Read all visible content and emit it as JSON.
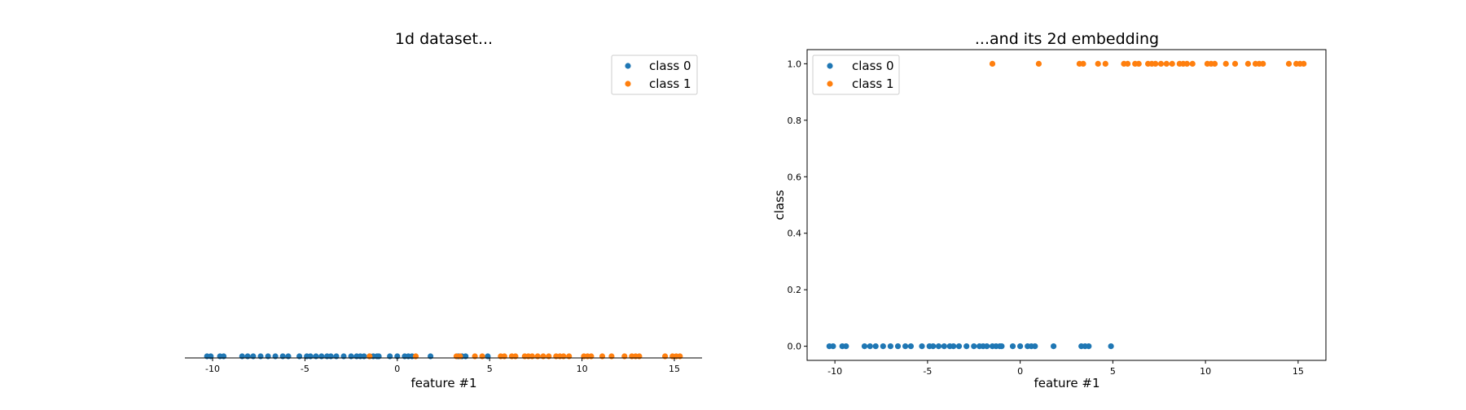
{
  "colors": {
    "class0": "#1f77b4",
    "class1": "#ff7f0e"
  },
  "legend": [
    "class 0",
    "class 1"
  ],
  "chart_data": [
    {
      "type": "scatter",
      "title": "1d dataset...",
      "xlabel": "feature #1",
      "ylabel": "",
      "xlim": [
        -11.5,
        16.5
      ],
      "xticks": [
        -10,
        -5,
        0,
        5,
        10,
        15
      ],
      "grid": false,
      "legend_position": "top-right",
      "series": [
        {
          "name": "class 0",
          "color": "#1f77b4",
          "x": [
            -10.3,
            -10.1,
            -9.6,
            -9.4,
            -8.4,
            -8.1,
            -7.8,
            -7.4,
            -7.0,
            -6.6,
            -6.2,
            -5.9,
            -5.3,
            -4.9,
            -4.7,
            -4.4,
            -4.1,
            -3.8,
            -3.6,
            -3.3,
            -2.9,
            -2.5,
            -2.2,
            -2.0,
            -1.8,
            -1.5,
            -1.3,
            -1.1,
            -1.0,
            -0.4,
            0.0,
            0.4,
            0.6,
            0.8,
            1.8,
            3.3,
            3.5,
            3.7,
            4.9
          ],
          "y": [
            0,
            0,
            0,
            0,
            0,
            0,
            0,
            0,
            0,
            0,
            0,
            0,
            0,
            0,
            0,
            0,
            0,
            0,
            0,
            0,
            0,
            0,
            0,
            0,
            0,
            0,
            0,
            0,
            0,
            0,
            0,
            0,
            0,
            0,
            0,
            0,
            0,
            0,
            0
          ]
        },
        {
          "name": "class 1",
          "color": "#ff7f0e",
          "x": [
            -1.5,
            1.0,
            3.2,
            3.4,
            4.2,
            4.6,
            5.6,
            5.8,
            6.2,
            6.4,
            6.9,
            7.1,
            7.3,
            7.6,
            7.9,
            8.2,
            8.6,
            8.8,
            9.0,
            9.3,
            10.1,
            10.3,
            10.5,
            11.1,
            11.6,
            12.3,
            12.7,
            12.9,
            13.1,
            14.5,
            14.9,
            15.1,
            15.3
          ],
          "y": [
            0,
            0,
            0,
            0,
            0,
            0,
            0,
            0,
            0,
            0,
            0,
            0,
            0,
            0,
            0,
            0,
            0,
            0,
            0,
            0,
            0,
            0,
            0,
            0,
            0,
            0,
            0,
            0,
            0,
            0,
            0,
            0,
            0
          ]
        }
      ]
    },
    {
      "type": "scatter",
      "title": "...and its 2d embedding",
      "xlabel": "feature #1",
      "ylabel": "class",
      "xlim": [
        -11.5,
        16.5
      ],
      "ylim": [
        -0.05,
        1.05
      ],
      "xticks": [
        -10,
        -5,
        0,
        5,
        10,
        15
      ],
      "yticks": [
        "0.0",
        "0.2",
        "0.4",
        "0.6",
        "0.8",
        "1.0"
      ],
      "grid": false,
      "legend_position": "top-left",
      "series": [
        {
          "name": "class 0",
          "color": "#1f77b4",
          "x": [
            -10.3,
            -10.1,
            -9.6,
            -9.4,
            -8.4,
            -8.1,
            -7.8,
            -7.4,
            -7.0,
            -6.6,
            -6.2,
            -5.9,
            -5.3,
            -4.9,
            -4.7,
            -4.4,
            -4.1,
            -3.8,
            -3.6,
            -3.3,
            -2.9,
            -2.5,
            -2.2,
            -2.0,
            -1.8,
            -1.5,
            -1.3,
            -1.1,
            -1.0,
            -0.4,
            0.0,
            0.4,
            0.6,
            0.8,
            1.8,
            3.3,
            3.5,
            3.7,
            4.9
          ],
          "y": [
            0,
            0,
            0,
            0,
            0,
            0,
            0,
            0,
            0,
            0,
            0,
            0,
            0,
            0,
            0,
            0,
            0,
            0,
            0,
            0,
            0,
            0,
            0,
            0,
            0,
            0,
            0,
            0,
            0,
            0,
            0,
            0,
            0,
            0,
            0,
            0,
            0,
            0,
            0
          ]
        },
        {
          "name": "class 1",
          "color": "#ff7f0e",
          "x": [
            -1.5,
            1.0,
            3.2,
            3.4,
            4.2,
            4.6,
            5.6,
            5.8,
            6.2,
            6.4,
            6.9,
            7.1,
            7.3,
            7.6,
            7.9,
            8.2,
            8.6,
            8.8,
            9.0,
            9.3,
            10.1,
            10.3,
            10.5,
            11.1,
            11.6,
            12.3,
            12.7,
            12.9,
            13.1,
            14.5,
            14.9,
            15.1,
            15.3
          ],
          "y": [
            1,
            1,
            1,
            1,
            1,
            1,
            1,
            1,
            1,
            1,
            1,
            1,
            1,
            1,
            1,
            1,
            1,
            1,
            1,
            1,
            1,
            1,
            1,
            1,
            1,
            1,
            1,
            1,
            1,
            1,
            1,
            1,
            1
          ]
        }
      ]
    }
  ]
}
